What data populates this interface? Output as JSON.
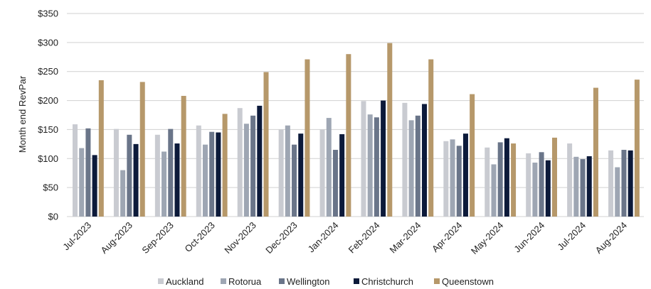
{
  "chart_data": {
    "type": "bar",
    "ylabel": "Month end RevPar",
    "ylim": [
      0,
      350
    ],
    "y_ticks": [
      "$0",
      "$50",
      "$100",
      "$150",
      "$200",
      "$250",
      "$300",
      "$350"
    ],
    "y_tick_values": [
      0,
      50,
      100,
      150,
      200,
      250,
      300,
      350
    ],
    "grid": true,
    "legend_position": "bottom",
    "categories": [
      "Jul-2023",
      "Aug-2023",
      "Sep-2023",
      "Oct-2023",
      "Nov-2023",
      "Dec-2023",
      "Jan-2024",
      "Feb-2024",
      "Mar-2024",
      "Apr-2024",
      "May-2024",
      "Jun-2024",
      "Jul-2024",
      "Aug-2024"
    ],
    "series": [
      {
        "name": "Auckland",
        "color": "#c9cbd1",
        "values": [
          159,
          151,
          141,
          157,
          187,
          150,
          150,
          199,
          196,
          130,
          119,
          109,
          126,
          114
        ]
      },
      {
        "name": "Rotorua",
        "color": "#9ea6b3",
        "values": [
          118,
          80,
          112,
          124,
          160,
          157,
          170,
          176,
          166,
          133,
          90,
          93,
          103,
          85
        ]
      },
      {
        "name": "Wellington",
        "color": "#6a7589",
        "values": [
          152,
          141,
          151,
          146,
          174,
          124,
          115,
          171,
          174,
          122,
          128,
          111,
          99,
          115
        ]
      },
      {
        "name": "Christchurch",
        "color": "#0c1a3a",
        "values": [
          106,
          125,
          126,
          145,
          191,
          143,
          142,
          200,
          194,
          143,
          135,
          97,
          104,
          114
        ]
      },
      {
        "name": "Queenstown",
        "color": "#b6986a",
        "values": [
          235,
          232,
          208,
          177,
          249,
          271,
          280,
          299,
          271,
          211,
          126,
          136,
          222,
          236
        ]
      }
    ]
  }
}
